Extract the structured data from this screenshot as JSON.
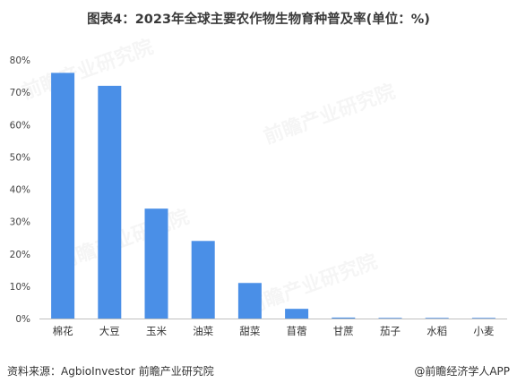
{
  "title": "图表4：2023年全球主要农作物生物育种普及率(单位：%)",
  "watermark": "前瞻产业研究院",
  "source": "资料来源：AgbioInvestor 前瞻产业研究院",
  "brand": "@前瞻经济学人APP",
  "colors": {
    "bar": "#4a8fe7",
    "axis": "#bfbfbf"
  },
  "chart_data": {
    "type": "bar",
    "title": "图表4：2023年全球主要农作物生物育种普及率(单位：%)",
    "categories": [
      "棉花",
      "大豆",
      "玉米",
      "油菜",
      "甜菜",
      "苜蓿",
      "甘蔗",
      "茄子",
      "水稻",
      "小麦"
    ],
    "values": [
      76,
      72,
      34,
      24,
      11,
      3,
      0.3,
      0.2,
      0.2,
      0.2
    ],
    "yticks": [
      "0%",
      "10%",
      "20%",
      "30%",
      "40%",
      "50%",
      "60%",
      "70%",
      "80%"
    ],
    "ylim": [
      0,
      80
    ],
    "xlabel": "",
    "ylabel": "",
    "grid": false,
    "legend": "none"
  }
}
